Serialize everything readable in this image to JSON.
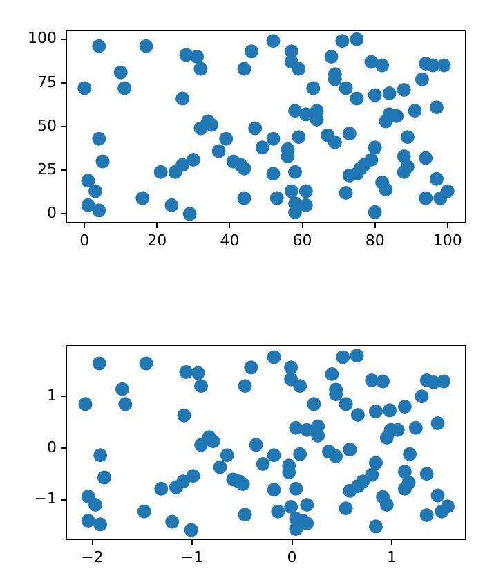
{
  "chart_data": [
    {
      "type": "scatter",
      "color": "#1f77b4",
      "marker": "circle",
      "grid": false,
      "xlim": [
        -5,
        105
      ],
      "ylim": [
        -5,
        105
      ],
      "xticks": [
        0,
        20,
        40,
        60,
        80,
        100
      ],
      "yticks": [
        0,
        25,
        50,
        75,
        100
      ],
      "x": [
        0,
        1,
        1,
        3,
        4,
        4,
        5,
        4,
        10,
        11,
        17,
        16,
        21,
        24,
        25,
        27,
        27,
        28,
        29,
        30,
        31,
        32,
        32,
        34,
        35,
        37,
        39,
        41,
        43,
        44,
        44,
        44,
        46,
        47,
        49,
        52,
        52,
        52,
        53,
        56,
        56,
        57,
        57,
        57,
        58,
        58,
        58,
        58,
        59,
        59,
        61,
        61,
        61,
        63,
        64,
        64,
        67,
        68,
        69,
        69,
        69,
        71,
        72,
        72,
        73,
        73,
        75,
        75,
        75,
        76,
        77,
        79,
        79,
        80,
        80,
        80,
        82,
        82,
        83,
        83,
        84,
        84,
        86,
        88,
        88,
        88,
        89,
        89,
        91,
        93,
        94,
        94,
        94,
        96,
        97,
        97,
        99,
        98,
        100
      ],
      "values": [
        72,
        19,
        5,
        13,
        2,
        43,
        30,
        96,
        81,
        72,
        96,
        9,
        24,
        5,
        24,
        28,
        66,
        91,
        0,
        31,
        90,
        83,
        49,
        53,
        51,
        36,
        43,
        30,
        28,
        26,
        9,
        83,
        93,
        49,
        38,
        99,
        43,
        23,
        9,
        37,
        33,
        93,
        13,
        87,
        59,
        24,
        6,
        1,
        83,
        44,
        5,
        13,
        57,
        72,
        59,
        54,
        45,
        90,
        80,
        77,
        41,
        99,
        72,
        12,
        46,
        22,
        100,
        66,
        23,
        26,
        28,
        87,
        31,
        38,
        1,
        68,
        85,
        18,
        14,
        53,
        69,
        57,
        56,
        71,
        33,
        24,
        44,
        27,
        59,
        77,
        86,
        32,
        9,
        85,
        61,
        20,
        85,
        9,
        13
      ]
    },
    {
      "type": "scatter",
      "color": "#1f77b4",
      "marker": "circle",
      "grid": false,
      "xlim": [
        -2.26,
        1.74
      ],
      "ylim": [
        -1.77,
        1.98
      ],
      "xticks": [
        {
          "value": -2,
          "label": "−2"
        },
        {
          "value": -1,
          "label": "−1"
        },
        0,
        1
      ],
      "yticks": [
        {
          "value": -1,
          "label": "−1"
        },
        0,
        1
      ],
      "x": [
        -2.07,
        -1.93,
        -1.92,
        -1.88,
        -2.04,
        -1.97,
        -2.04,
        -1.92,
        -1.7,
        -1.67,
        -1.46,
        -1.48,
        -1.31,
        -1.2,
        -1.16,
        -1.09,
        -1.08,
        -1.06,
        -1.01,
        -0.99,
        -0.94,
        -0.91,
        -0.91,
        -0.83,
        -0.79,
        -0.72,
        -0.65,
        -0.59,
        -0.53,
        -0.49,
        -0.47,
        -0.47,
        -0.41,
        -0.36,
        -0.29,
        -0.18,
        -0.18,
        -0.18,
        -0.14,
        -0.03,
        -0.03,
        -0.01,
        -0.01,
        -0.01,
        0.04,
        0.04,
        0.04,
        0.04,
        0.08,
        0.08,
        0.11,
        0.15,
        0.15,
        0.15,
        0.22,
        0.26,
        0.26,
        0.37,
        0.4,
        0.44,
        0.44,
        0.44,
        0.51,
        0.54,
        0.54,
        0.58,
        0.58,
        0.65,
        0.66,
        0.66,
        0.71,
        0.8,
        0.8,
        0.84,
        0.84,
        0.84,
        0.91,
        0.91,
        0.95,
        0.95,
        0.98,
        0.99,
        1.06,
        1.13,
        1.13,
        1.13,
        1.18,
        1.17,
        1.24,
        1.3,
        1.35,
        1.35,
        1.35,
        1.42,
        1.46,
        1.46,
        1.52,
        1.5,
        1.56
      ],
      "values": [
        0.85,
        1.64,
        -0.14,
        -0.57,
        -0.94,
        -1.1,
        -1.41,
        -1.48,
        1.14,
        0.85,
        1.64,
        -1.23,
        -0.79,
        -1.43,
        -0.76,
        -0.65,
        0.63,
        1.47,
        -1.59,
        -0.54,
        1.45,
        1.2,
        0.06,
        0.21,
        0.13,
        -0.37,
        -0.14,
        -0.61,
        -0.65,
        -0.7,
        1.2,
        -1.29,
        1.56,
        0.06,
        -0.31,
        1.76,
        -0.14,
        -0.81,
        -1.23,
        -0.34,
        -0.47,
        1.56,
        -1.14,
        1.33,
        0.39,
        -0.79,
        -1.37,
        -1.57,
        1.2,
        -0.12,
        -1.41,
        -1.46,
        -1.1,
        0.35,
        0.85,
        0.42,
        0.24,
        -0.07,
        1.43,
        1.13,
        1.04,
        -0.16,
        1.76,
        0.85,
        -1.17,
        -0.03,
        -0.83,
        1.79,
        0.64,
        -0.74,
        -0.65,
        1.31,
        -0.52,
        -0.29,
        -1.52,
        0.71,
        1.29,
        -0.95,
        -1.1,
        0.2,
        0.73,
        0.35,
        0.35,
        0.8,
        -0.46,
        -0.79,
        -0.12,
        -0.67,
        0.39,
        1,
        1.31,
        -0.5,
        -1.3,
        1.27,
        0.48,
        -0.92,
        1.29,
        -1.23,
        -1.13
      ]
    }
  ]
}
